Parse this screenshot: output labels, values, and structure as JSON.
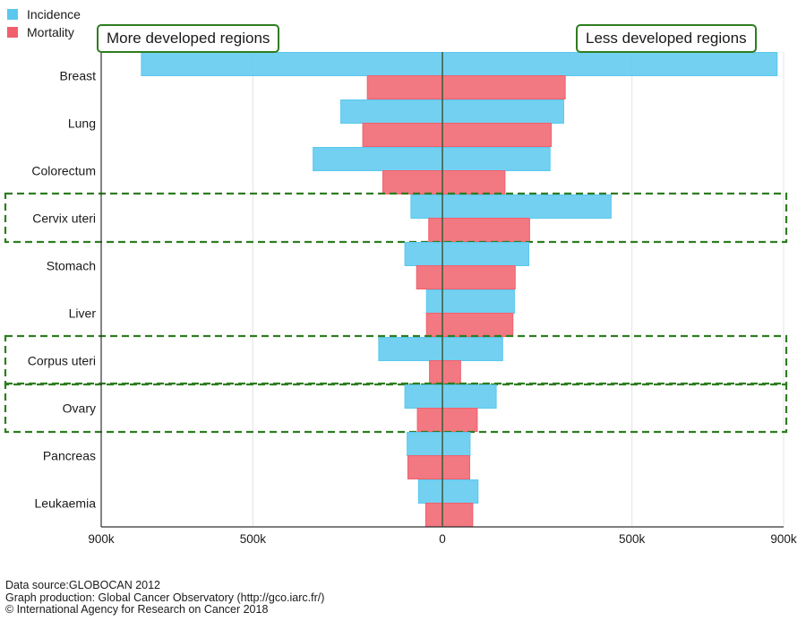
{
  "legend": [
    {
      "label": "Incidence",
      "color": "#5bc8ee"
    },
    {
      "label": "Mortality",
      "color": "#f0606c"
    }
  ],
  "regions": {
    "left": "More developed regions",
    "right": "Less developed regions"
  },
  "chart_data": {
    "type": "bar",
    "orientation": "horizontal-diverging",
    "categories": [
      "Breast",
      "Lung",
      "Colorectum",
      "Cervix uteri",
      "Stomach",
      "Liver",
      "Corpus uteri",
      "Ovary",
      "Pancreas",
      "Leukaemia"
    ],
    "series": [
      {
        "name": "Incidence",
        "color": "#5bc8ee",
        "left": [
          794000,
          268000,
          341000,
          83000,
          99000,
          42000,
          168000,
          99000,
          93000,
          63000
        ],
        "right": [
          883000,
          320000,
          284000,
          445000,
          228000,
          190000,
          159000,
          142000,
          73000,
          94000
        ]
      },
      {
        "name": "Mortality",
        "color": "#f0606c",
        "left": [
          198000,
          210000,
          157000,
          36000,
          68000,
          42000,
          34000,
          66000,
          91000,
          44000
        ],
        "right": [
          324000,
          287000,
          165000,
          230000,
          192000,
          186000,
          48000,
          92000,
          72000,
          80000
        ]
      }
    ],
    "xlim": [
      -900000,
      900000
    ],
    "xticks": [
      {
        "value": -900000,
        "label": "900k"
      },
      {
        "value": -500000,
        "label": "500k"
      },
      {
        "value": 0,
        "label": "0"
      },
      {
        "value": 500000,
        "label": "500k"
      },
      {
        "value": 900000,
        "label": "900k"
      }
    ],
    "highlighted": [
      "Cervix uteri",
      "Corpus uteri",
      "Ovary"
    ],
    "highlight_color": "#2e7d20",
    "grid": true
  },
  "footer": {
    "line1": "Data source:GLOBOCAN 2012",
    "line2": "Graph production: Global Cancer Observatory (http://gco.iarc.fr/)",
    "line3": "© International Agency for Research on Cancer 2018"
  }
}
